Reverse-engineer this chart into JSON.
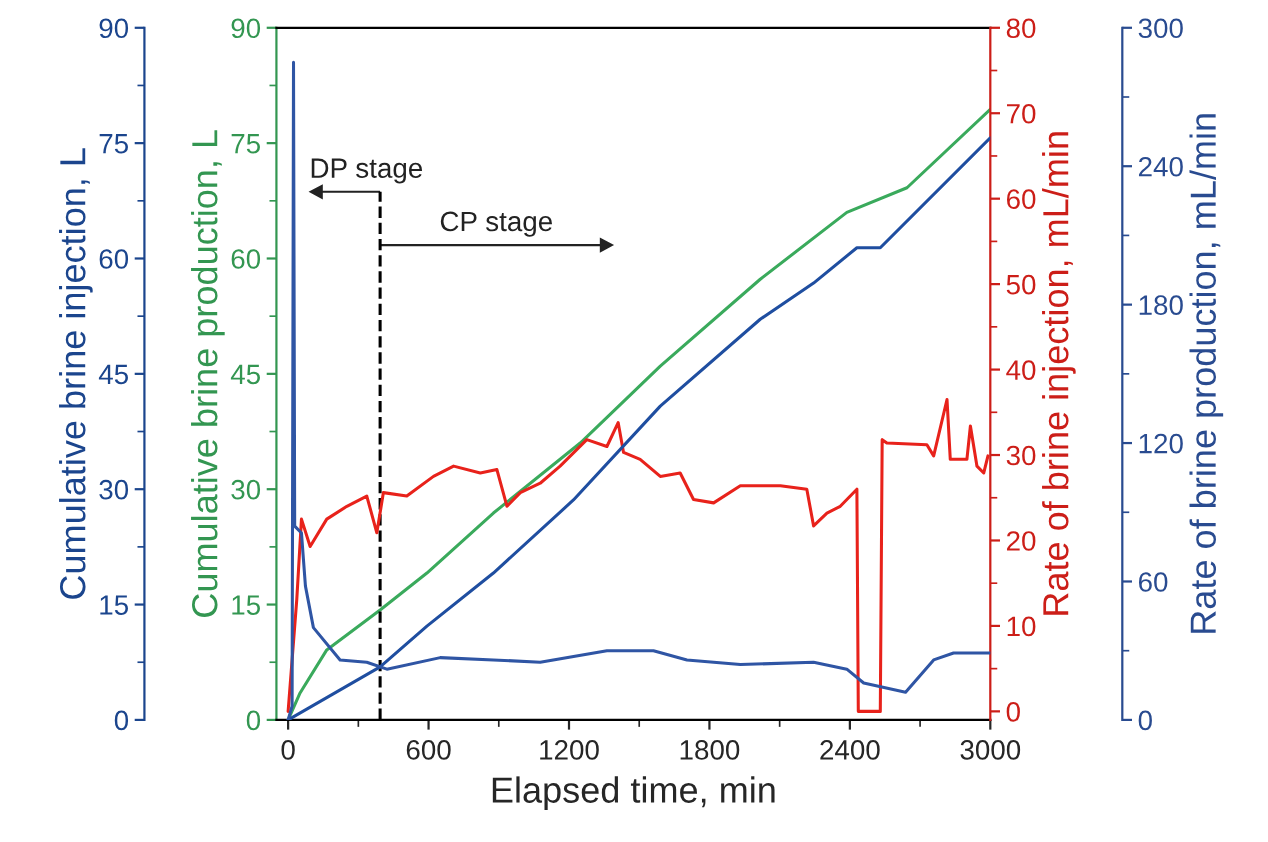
{
  "chart_data": [
    {
      "type": "line",
      "xlabel": "Elapsed time, min",
      "ylabel": "Cumulative brine production, L",
      "y2label": "Rate of brine injection, mL/min",
      "xlim": [
        -50,
        3000
      ],
      "xticks": [
        0,
        600,
        1200,
        1800,
        2400,
        3000
      ],
      "ylim": [
        0,
        90
      ],
      "yticks": [
        0,
        15,
        30,
        45,
        60,
        75,
        90
      ],
      "y2lim": [
        -1,
        80
      ],
      "y2ticks": [
        0,
        10,
        20,
        30,
        40,
        50,
        60,
        70,
        80
      ],
      "grid": false,
      "legend": false,
      "marker": "none",
      "line_style": "solid",
      "ref_lines": [
        {
          "axis": "x",
          "value": 393,
          "color": "#000000",
          "line_style": "dashed"
        }
      ],
      "annotations": [
        "DP stage",
        "CP stage"
      ],
      "series": [
        {
          "color": "#3aaa5c",
          "x": [
            0,
            51,
            165,
            393,
            593,
            877,
            1248,
            1590,
            2017,
            2387,
            2644,
            3000
          ],
          "values": [
            0,
            3.5,
            9.1,
            14.3,
            19.1,
            26.9,
            36.0,
            46.0,
            57.3,
            66.0,
            69.2,
            79.4
          ]
        },
        {
          "axis": "y2",
          "color": "#e8221b",
          "x": [
            0,
            37,
            57,
            94,
            165,
            251,
            336,
            379,
            407,
            507,
            621,
            707,
            821,
            892,
            935,
            992,
            1077,
            1162,
            1276,
            1362,
            1410,
            1433,
            1504,
            1590,
            1675,
            1732,
            1818,
            1932,
            2103,
            2216,
            2245,
            2302,
            2359,
            2430,
            2436,
            2530,
            2538,
            2558,
            2729,
            2758,
            2815,
            2829,
            2900,
            2915,
            2943,
            2972,
            2990
          ],
          "values": [
            0,
            13.1,
            22.5,
            19.3,
            22.5,
            24,
            25.2,
            20.9,
            25.6,
            25.2,
            27.5,
            28.7,
            27.9,
            28.3,
            24,
            25.6,
            26.7,
            28.7,
            31.8,
            31,
            33.8,
            30.3,
            29.5,
            27.5,
            27.9,
            24.8,
            24.4,
            26.4,
            26.4,
            26,
            21.7,
            23.2,
            24,
            26,
            0,
            0,
            31.8,
            31.4,
            31.2,
            29.9,
            36.5,
            29.5,
            29.5,
            33.4,
            28.7,
            27.9,
            29.9
          ]
        }
      ]
    },
    {
      "type": "line",
      "tick_labels": "y",
      "ylabel": "Cumulative brine injection, L",
      "y2label": "Rate of brine production, mL/min",
      "xlim": [
        -50,
        3000
      ],
      "ylim": [
        0,
        90
      ],
      "yticks": [
        0,
        15,
        30,
        45,
        60,
        75,
        90
      ],
      "y2lim": [
        0,
        300
      ],
      "y2ticks": [
        0,
        60,
        120,
        180,
        240,
        300
      ],
      "marker": "none",
      "line_style": "solid",
      "series": [
        {
          "color": "#1f4ea0",
          "x": [
            0,
            393,
            593,
            877,
            1219,
            1590,
            2017,
            2245,
            2430,
            2530,
            3000
          ],
          "values": [
            0,
            6.9,
            12.2,
            19.1,
            28.6,
            40.8,
            52.1,
            56.8,
            61.4,
            61.4,
            75.7
          ]
        },
        {
          "axis": "y2",
          "color": "#2f55a4",
          "x": [
            0,
            17,
            23,
            28,
            57,
            74,
            108,
            222,
            336,
            422,
            650,
            877,
            1077,
            1362,
            1561,
            1704,
            1932,
            2245,
            2387,
            2459,
            2638,
            2758,
            2843,
            3000
          ],
          "values": [
            0,
            6,
            285,
            84,
            81,
            58,
            40,
            26,
            25,
            22,
            27,
            26,
            25,
            30,
            30,
            26,
            24,
            25,
            22,
            16,
            12,
            26,
            29,
            29
          ]
        }
      ]
    }
  ]
}
